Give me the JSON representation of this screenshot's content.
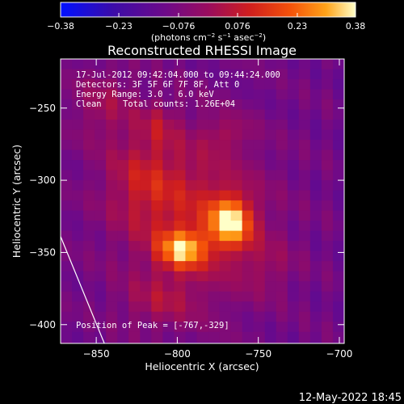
{
  "chart_data": {
    "type": "heatmap",
    "title": "Reconstructed RHESSI Image",
    "xlabel": "Heliocentric X (arcsec)",
    "ylabel": "Heliocentric Y (arcsec)",
    "xlim": [
      -872,
      -697
    ],
    "ylim": [
      -413,
      -216
    ],
    "x_ticks": [
      -850,
      -800,
      -750,
      -700
    ],
    "y_ticks": [
      -250,
      -300,
      -350,
      -400
    ],
    "x_tick_labels": [
      "−850",
      "−800",
      "−750",
      "−700"
    ],
    "y_tick_labels": [
      "−250",
      "−300",
      "−350",
      "−400"
    ],
    "colorbar": {
      "range": [
        -0.38,
        0.38
      ],
      "ticks": [
        -0.38,
        -0.23,
        -0.076,
        0.076,
        0.23,
        0.38
      ],
      "tick_labels": [
        "−0.38",
        "−0.23",
        "−0.076",
        "0.076",
        "0.23",
        "0.38"
      ],
      "units_prefix": "(photons cm",
      "units_exp1": "−2",
      "units_mid1": " s",
      "units_exp2": "−1",
      "units_mid2": " asec",
      "units_exp3": "−2",
      "units_suffix": ")"
    },
    "annotations": {
      "time_range": "17-Jul-2012 09:42:04.000 to 09:44:24.000",
      "detectors": "Detectors: 3F 5F 6F 7F 8F, Att 0",
      "energy_range": "Energy Range: 3.0 - 6.0 keV",
      "method": "Clean",
      "total_counts": "Total counts: 1.26E+04",
      "peak_label": "Position of Peak = [-767,-329]"
    },
    "peak": {
      "x": -767,
      "y": -329
    },
    "sources": [
      {
        "x": -767,
        "y": -329,
        "sigma_x": 9,
        "sigma_y": 12,
        "amplitude": 0.38
      },
      {
        "x": -797,
        "y": -348,
        "sigma_x": 10,
        "sigma_y": 9,
        "amplitude": 0.33
      },
      {
        "x": -790,
        "y": -325,
        "sigma_x": 30,
        "sigma_y": 40,
        "amplitude": 0.17
      },
      {
        "x": -822,
        "y": -300,
        "sigma_x": 16,
        "sigma_y": 22,
        "amplitude": 0.12
      },
      {
        "x": -845,
        "y": -248,
        "sigma_x": 14,
        "sigma_y": 18,
        "amplitude": 0.1
      },
      {
        "x": -812,
        "y": -262,
        "sigma_x": 8,
        "sigma_y": 12,
        "amplitude": 0.09
      },
      {
        "x": -770,
        "y": -268,
        "sigma_x": 10,
        "sigma_y": 8,
        "amplitude": 0.08
      },
      {
        "x": -812,
        "y": -385,
        "sigma_x": 16,
        "sigma_y": 12,
        "amplitude": 0.09
      },
      {
        "x": -745,
        "y": -360,
        "sigma_x": 12,
        "sigma_y": 14,
        "amplitude": 0.07
      }
    ],
    "background_level": -0.1,
    "limb_line": [
      {
        "x": -872,
        "y": -339
      },
      {
        "x": -845,
        "y": -413
      }
    ]
  },
  "footer": {
    "timestamp": "12-May-2022 18:45"
  }
}
